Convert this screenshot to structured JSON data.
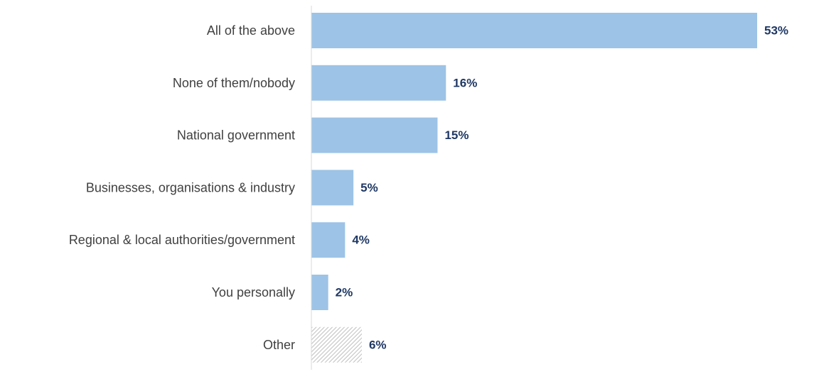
{
  "chart_data": {
    "type": "bar",
    "orientation": "horizontal",
    "categories": [
      "All of the above",
      "None of them/nobody",
      "National government",
      "Businesses, organisations & industry",
      "Regional & local authorities/government",
      "You personally",
      "Other"
    ],
    "values": [
      53,
      16,
      15,
      5,
      4,
      2,
      6
    ],
    "value_labels": [
      "53%",
      "16%",
      "15%",
      "5%",
      "4%",
      "2%",
      "6%"
    ],
    "unit": "%",
    "xlim": [
      0,
      53
    ],
    "grid": false,
    "legend": "none",
    "title": "",
    "xlabel": "",
    "ylabel": "",
    "colors": {
      "bar": "#9dc3e6",
      "other_bar_hatch": "#bfbfbf",
      "axis": "#d9d9d9",
      "category_text": "#404040",
      "value_text": "#1f3864"
    },
    "hatched_categories": [
      "Other"
    ]
  }
}
